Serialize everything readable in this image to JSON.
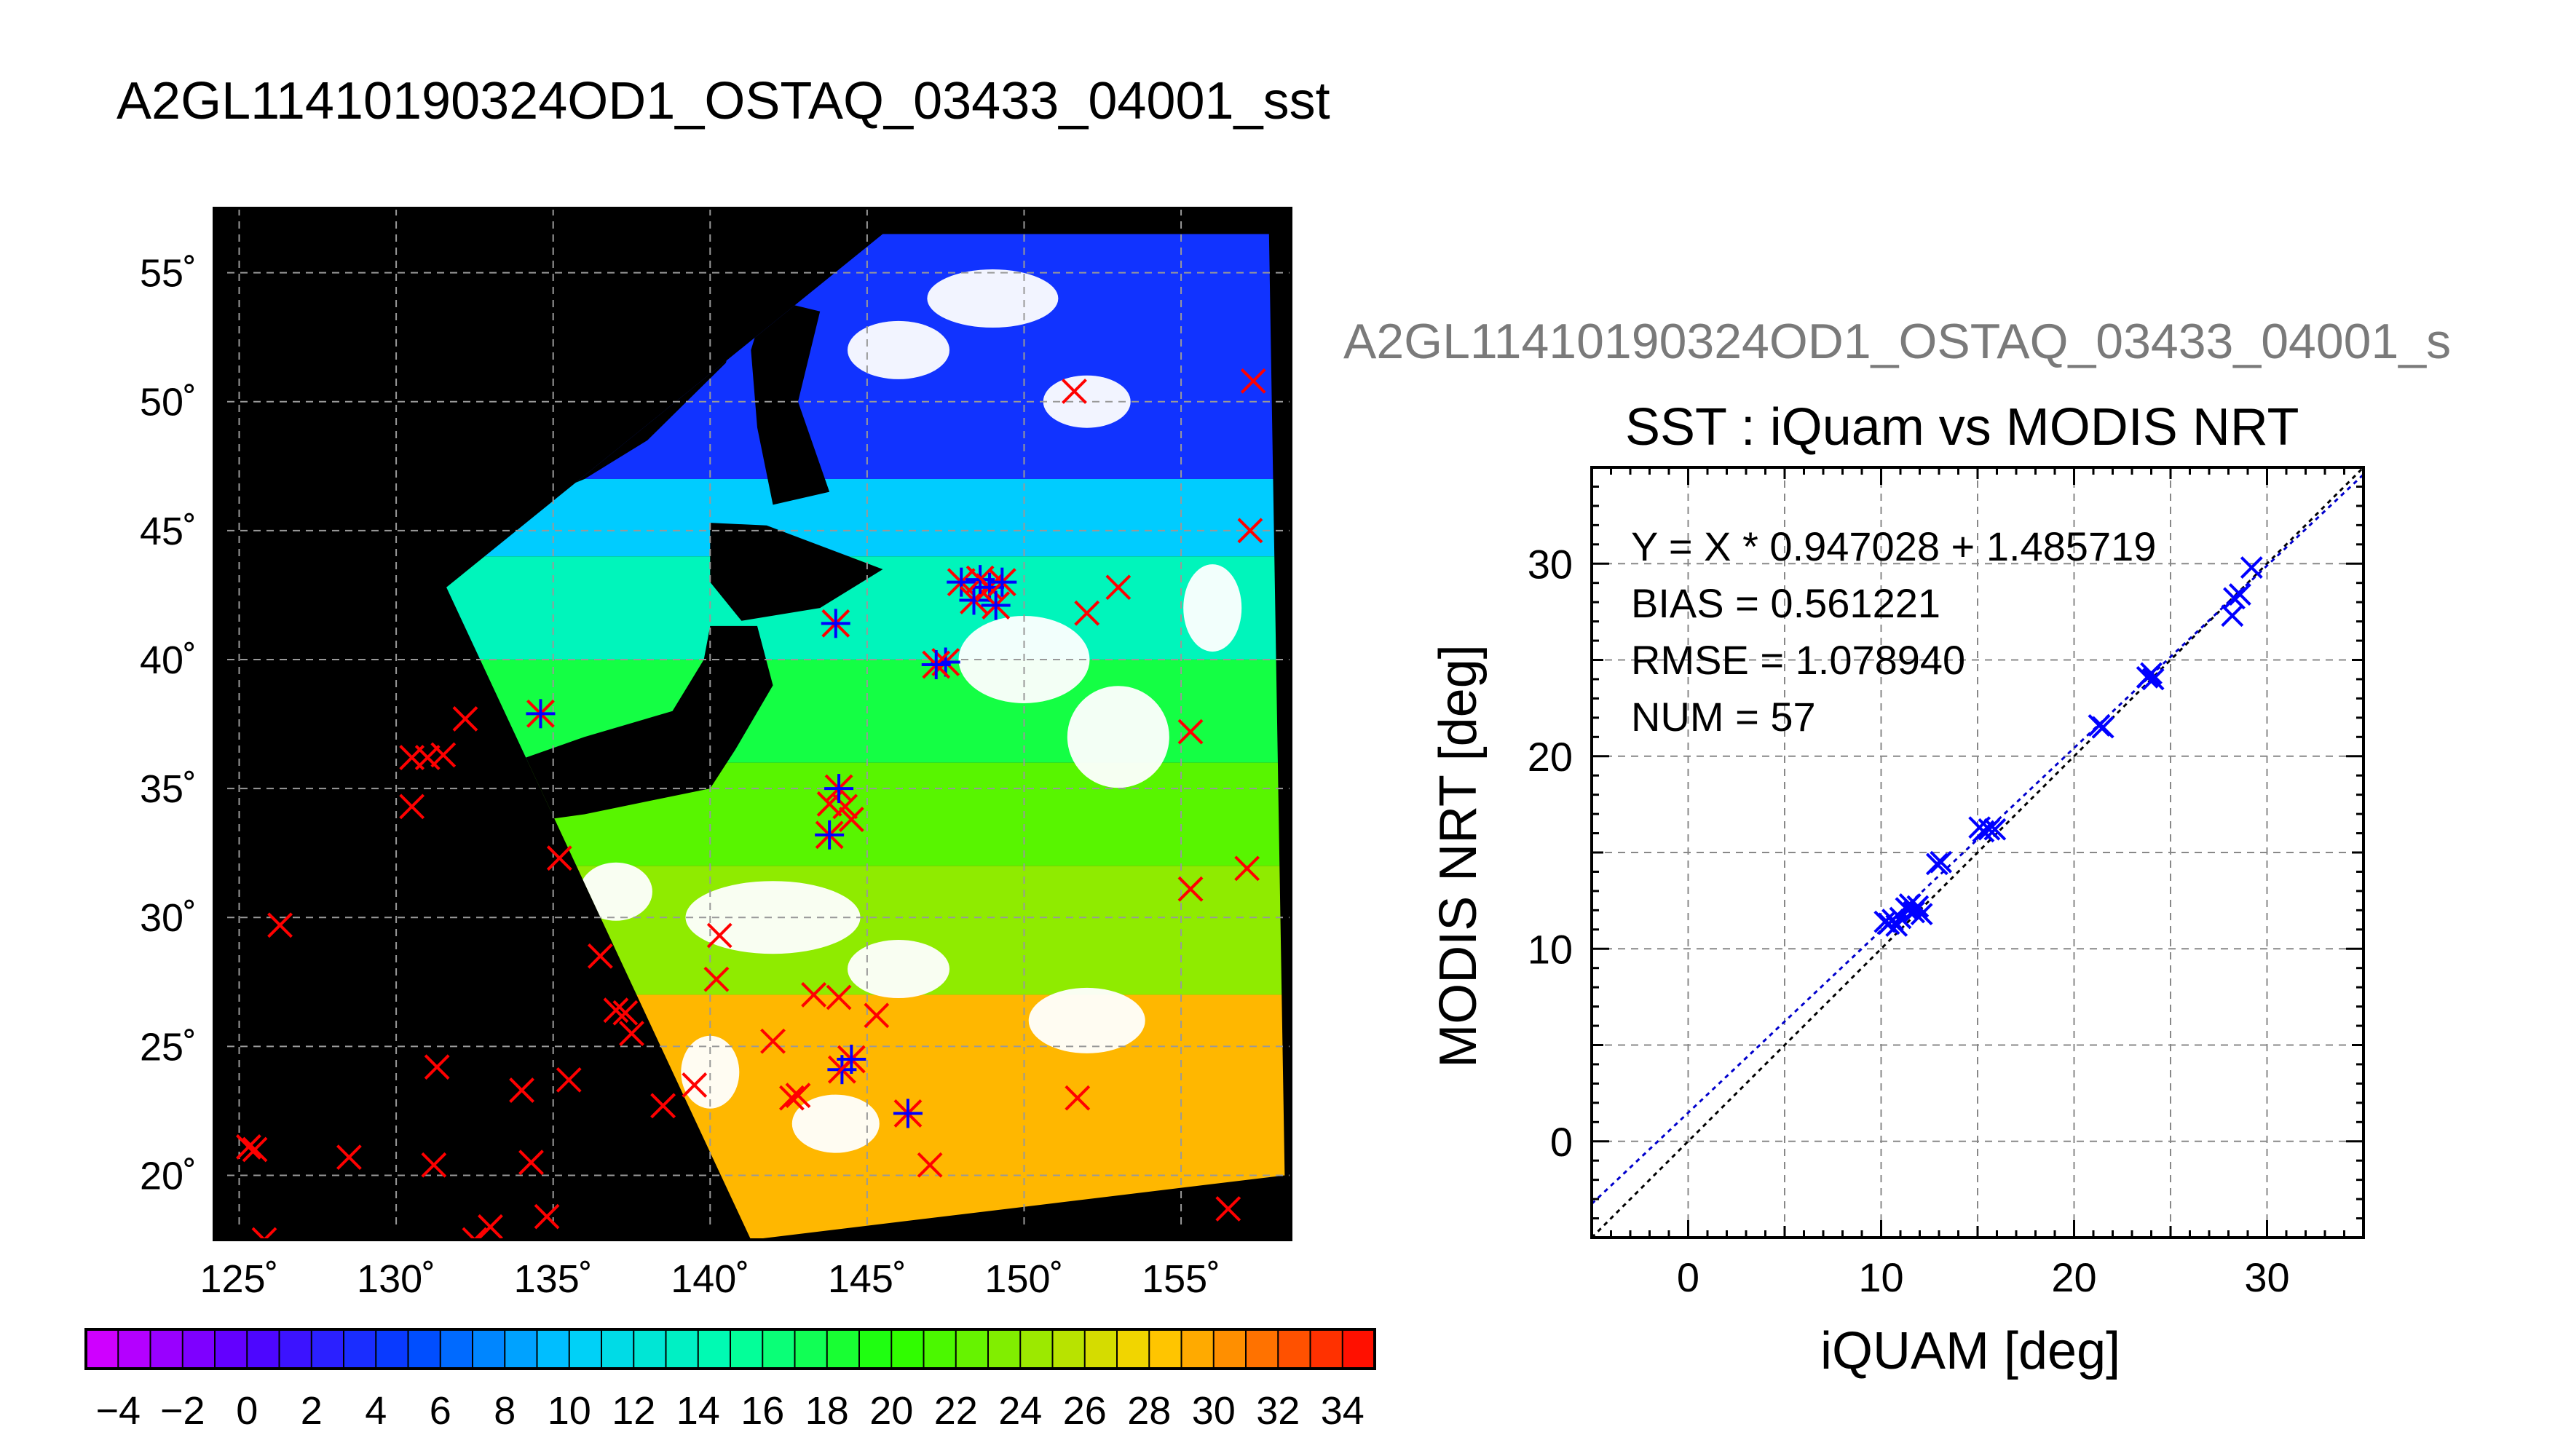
{
  "titles": {
    "main": "A2GL11410190324OD1_OSTAQ_03433_04001_sst",
    "scatter_file": "A2GL11410190324OD1_OSTAQ_03433_04001_s",
    "scatter": "SST : iQuam vs MODIS NRT"
  },
  "stats": {
    "fit": "Y = X * 0.947028 + 1.485719",
    "bias": "BIAS = 0.561221",
    "rmse": "RMSE = 1.078940",
    "num": "NUM = 57"
  },
  "colors": {
    "land": "#000000",
    "cloud": "#ffffff",
    "marker_red": "#ff0000",
    "marker_blue": "#0000ff",
    "regression_line": "#0000cc",
    "identity_line": "#000000"
  },
  "chart_data": [
    {
      "type": "heatmap",
      "title": "",
      "xlabel": "",
      "ylabel": "",
      "x_ticks": [
        "125˚",
        "130˚",
        "135˚",
        "140˚",
        "145˚",
        "150˚",
        "155˚"
      ],
      "x_tick_values": [
        125,
        130,
        135,
        140,
        145,
        150,
        155
      ],
      "y_ticks": [
        "55˚",
        "50˚",
        "45˚",
        "40˚",
        "35˚",
        "30˚",
        "25˚",
        "20˚"
      ],
      "y_tick_values": [
        55,
        50,
        45,
        40,
        35,
        30,
        25,
        20
      ],
      "xlim": [
        124.2,
        158.5
      ],
      "ylim": [
        17.5,
        57.5
      ],
      "grid": true,
      "swath_polygon": [
        [
          131.6,
          42.8
        ],
        [
          145.5,
          56.5
        ],
        [
          157.8,
          56.5
        ],
        [
          158.3,
          20.0
        ],
        [
          141.3,
          17.5
        ]
      ],
      "sst_zones": [
        {
          "lat": [
            47,
            56.5
          ],
          "value": 4
        },
        {
          "lat": [
            44,
            47
          ],
          "value": 10
        },
        {
          "lat": [
            40,
            44
          ],
          "value": 14
        },
        {
          "lat": [
            36,
            40
          ],
          "value": 18
        },
        {
          "lat": [
            32,
            36
          ],
          "value": 22
        },
        {
          "lat": [
            27,
            32
          ],
          "value": 24
        },
        {
          "lat": [
            17.5,
            27
          ],
          "value": 29
        }
      ],
      "colorbar": {
        "min": -5,
        "max": 35,
        "tick_labels": [
          "−4",
          "−2",
          "0",
          "2",
          "4",
          "6",
          "8",
          "10",
          "12",
          "14",
          "16",
          "18",
          "20",
          "22",
          "24",
          "26",
          "28",
          "30",
          "32",
          "34"
        ],
        "tick_values": [
          -4,
          -2,
          0,
          2,
          4,
          6,
          8,
          10,
          12,
          14,
          16,
          18,
          20,
          22,
          24,
          26,
          28,
          30,
          32,
          34
        ]
      },
      "iquam_points": [
        [
          125.3,
          21.1
        ],
        [
          125.5,
          21.0
        ],
        [
          125.8,
          17.5
        ],
        [
          126.3,
          29.7
        ],
        [
          128.5,
          20.7
        ],
        [
          130.5,
          36.2
        ],
        [
          131.0,
          36.2
        ],
        [
          130.5,
          34.3
        ],
        [
          131.5,
          36.3
        ],
        [
          132.2,
          37.7
        ],
        [
          131.2,
          20.4
        ],
        [
          131.3,
          24.2
        ],
        [
          132.5,
          17.5
        ],
        [
          133.0,
          18.0
        ],
        [
          134.0,
          23.3
        ],
        [
          134.3,
          20.5
        ],
        [
          134.8,
          18.4
        ],
        [
          135.2,
          32.3
        ],
        [
          135.5,
          23.7
        ],
        [
          136.5,
          28.5
        ],
        [
          137.0,
          26.4
        ],
        [
          137.3,
          26.3
        ],
        [
          137.5,
          25.5
        ],
        [
          138.5,
          22.7
        ],
        [
          139.5,
          23.5
        ],
        [
          140.3,
          29.3
        ],
        [
          140.2,
          27.6
        ],
        [
          142.0,
          25.2
        ],
        [
          142.6,
          23.0
        ],
        [
          142.8,
          23.1
        ],
        [
          143.3,
          27.0
        ],
        [
          144.1,
          26.9
        ],
        [
          143.8,
          34.4
        ],
        [
          144.3,
          34.3
        ],
        [
          144.5,
          33.8
        ],
        [
          145.3,
          26.2
        ],
        [
          147.0,
          20.4
        ],
        [
          151.6,
          50.4
        ],
        [
          151.7,
          23.0
        ],
        [
          152.0,
          41.8
        ],
        [
          153.0,
          42.8
        ],
        [
          155.3,
          37.2
        ],
        [
          155.3,
          31.1
        ],
        [
          156.5,
          18.7
        ],
        [
          157.2,
          45.0
        ],
        [
          157.3,
          50.8
        ],
        [
          157.1,
          31.9
        ]
      ],
      "matchup_points": [
        [
          134.6,
          37.9
        ],
        [
          144.0,
          41.4
        ],
        [
          147.5,
          39.9
        ],
        [
          147.2,
          39.8
        ],
        [
          148.0,
          43.0
        ],
        [
          148.4,
          42.3
        ],
        [
          148.6,
          43.1
        ],
        [
          148.9,
          42.8
        ],
        [
          149.1,
          42.1
        ],
        [
          149.3,
          43.0
        ],
        [
          143.8,
          33.2
        ],
        [
          144.1,
          35.0
        ],
        [
          144.2,
          24.1
        ],
        [
          144.5,
          24.5
        ],
        [
          146.3,
          22.4
        ]
      ]
    },
    {
      "type": "scatter",
      "title": "SST : iQuam vs MODIS NRT",
      "xlabel": "iQUAM [deg]",
      "ylabel": "MODIS NRT [deg]",
      "xlim": [
        -5,
        35
      ],
      "ylim": [
        -5,
        35
      ],
      "x_ticks": [
        0,
        10,
        20,
        30
      ],
      "y_ticks": [
        0,
        10,
        20,
        30
      ],
      "grid": true,
      "regression": {
        "slope": 0.947028,
        "intercept": 1.485719
      },
      "identity_line": true,
      "points": [
        [
          10.2,
          11.4
        ],
        [
          10.4,
          11.3
        ],
        [
          10.6,
          11.5
        ],
        [
          10.8,
          11.2
        ],
        [
          11.0,
          11.6
        ],
        [
          11.3,
          12.1
        ],
        [
          11.5,
          12.3
        ],
        [
          11.7,
          11.9
        ],
        [
          11.9,
          12.2
        ],
        [
          12.1,
          11.8
        ],
        [
          12.9,
          14.4
        ],
        [
          13.1,
          14.5
        ],
        [
          15.1,
          16.3
        ],
        [
          15.3,
          16.1
        ],
        [
          15.6,
          16.2
        ],
        [
          15.9,
          16.2
        ],
        [
          21.3,
          21.6
        ],
        [
          21.5,
          21.5
        ],
        [
          23.8,
          24.1
        ],
        [
          24.0,
          24.3
        ],
        [
          24.1,
          24.0
        ],
        [
          28.2,
          27.3
        ],
        [
          28.3,
          28.2
        ],
        [
          28.6,
          28.4
        ],
        [
          29.2,
          29.8
        ]
      ]
    }
  ]
}
